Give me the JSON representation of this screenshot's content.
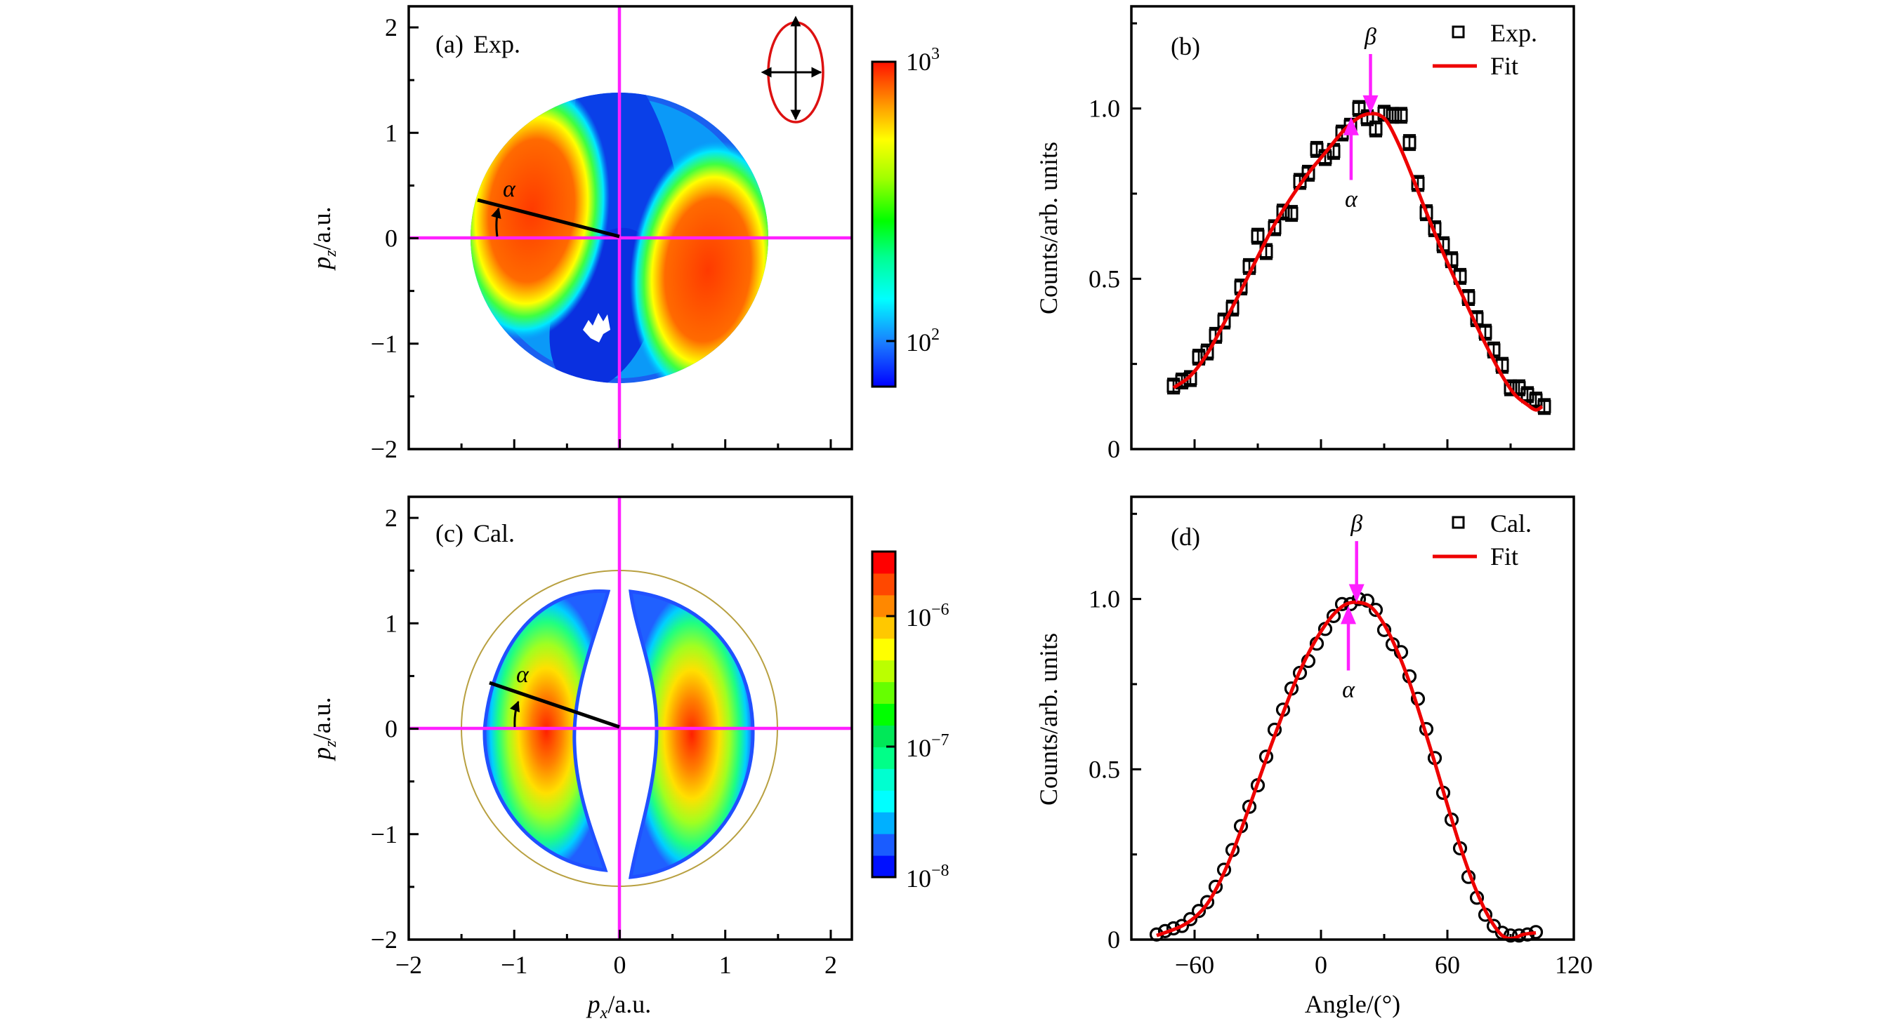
{
  "figure": {
    "panels": {
      "a": {
        "label": "(a)",
        "title": "Exp.",
        "xlabel_italic": "p",
        "xlabel_sub": "x",
        "xlabel_unit": "/a.u.",
        "ylabel_italic": "p",
        "ylabel_sub": "z",
        "ylabel_unit": "/a.u.",
        "angle_symbol": "α",
        "colorbar": {
          "scale": "log",
          "ticks": [
            {
              "base": "10",
              "exp": "3",
              "value": 1000
            },
            {
              "base": "10",
              "exp": "2",
              "value": 100
            }
          ],
          "range": [
            55,
            1000
          ]
        }
      },
      "b": {
        "label": "(b)",
        "legend": [
          "Exp.",
          "Fit"
        ],
        "alpha_symbol": "α",
        "beta_symbol": "β"
      },
      "c": {
        "label": "(c)",
        "title": "Cal.",
        "angle_symbol": "α",
        "colorbar": {
          "scale": "log",
          "ticks": [
            {
              "base": "10",
              "exp": "−6",
              "value": 1e-06
            },
            {
              "base": "10",
              "exp": "−7",
              "value": 1e-07
            },
            {
              "base": "10",
              "exp": "−8",
              "value": 1e-08
            }
          ],
          "range": [
            1e-08,
            3.2e-06
          ],
          "levels": 15
        }
      },
      "d": {
        "label": "(d)",
        "legend": [
          "Cal.",
          "Fit"
        ],
        "alpha_symbol": "α",
        "beta_symbol": "β"
      }
    },
    "colors": {
      "crosshair": "#ff20ff",
      "fit": "#ee0000",
      "ring": "#b8a040",
      "ellipse_icon": "#dd1111"
    }
  },
  "chart_data": [
    {
      "id": "a",
      "type": "heatmap",
      "title": "(a) Exp.",
      "xlabel": "p_x/a.u.",
      "ylabel": "p_z/a.u.",
      "xlim": [
        -2,
        2.2
      ],
      "ylim": [
        -2,
        2.2
      ],
      "xticks": [
        -2,
        -1,
        0,
        1,
        2
      ],
      "yticks": [
        -2,
        -1,
        0,
        1,
        2
      ],
      "xtick_labels": [
        "−2",
        "−1",
        "0",
        "1",
        "2"
      ],
      "ytick_labels": [
        "−2",
        "−1",
        "0",
        "1",
        "2"
      ],
      "minor_ticks": [
        -1.5,
        -0.5,
        0.5,
        1.5
      ],
      "crosshair": {
        "x": 0,
        "y": 0
      },
      "detector_radius": {
        "x": 1.42,
        "y": 1.38
      },
      "lobes": [
        {
          "center": [
            -0.85,
            0.3
          ],
          "peak": "high"
        },
        {
          "center": [
            0.85,
            -0.3
          ],
          "peak": "high"
        }
      ],
      "alpha_line": {
        "from": [
          0,
          0
        ],
        "to": [
          -1.35,
          0.36
        ]
      },
      "inset": "polarization ellipse (vertical major axis)",
      "colorbar_range": [
        55,
        1000
      ],
      "colorbar_scale": "log"
    },
    {
      "id": "b",
      "type": "scatter",
      "title": "(b)",
      "xlabel": "",
      "ylabel": "Counts/arb. units",
      "xlim": [
        -90,
        120
      ],
      "ylim": [
        0,
        1.3
      ],
      "xticks": [
        -60,
        0,
        60,
        120
      ],
      "minor_xticks": [
        -30,
        30,
        90
      ],
      "yticks": [
        0,
        0.5,
        1.0
      ],
      "ytick_labels": [
        "0",
        "0.5",
        "1.0"
      ],
      "minor_yticks": [
        0.25,
        0.75,
        1.25
      ],
      "legend": [
        "Exp.",
        "Fit"
      ],
      "legend_position": "top-right",
      "series": [
        {
          "name": "Exp.",
          "marker": "square",
          "x": [
            -70,
            -66,
            -62,
            -58,
            -54,
            -50,
            -46,
            -42,
            -38,
            -34,
            -30,
            -26,
            -22,
            -18,
            -14,
            -10,
            -6,
            -2,
            2,
            6,
            10,
            14,
            18,
            22,
            26,
            30,
            34,
            38,
            42,
            46,
            50,
            54,
            58,
            62,
            66,
            70,
            74,
            78,
            82,
            86,
            90,
            94,
            98,
            102,
            106
          ],
          "y": [
            0.185,
            0.2,
            0.207,
            0.27,
            0.285,
            0.334,
            0.376,
            0.414,
            0.476,
            0.536,
            0.625,
            0.58,
            0.65,
            0.696,
            0.692,
            0.786,
            0.81,
            0.88,
            0.856,
            0.874,
            0.928,
            0.948,
            1.0,
            0.973,
            0.94,
            0.986,
            0.98,
            0.98,
            0.9,
            0.78,
            0.694,
            0.647,
            0.6,
            0.556,
            0.507,
            0.445,
            0.383,
            0.343,
            0.291,
            0.246,
            0.18,
            0.18,
            0.16,
            0.144,
            0.125
          ],
          "yerr": 0.022
        },
        {
          "name": "Fit",
          "line": "solid",
          "x": [
            -70,
            -62,
            -54,
            -46,
            -38,
            -30,
            -22,
            -14,
            -6,
            2,
            10,
            16,
            20,
            24,
            28,
            32,
            38,
            44,
            50,
            56,
            62,
            68,
            74,
            80,
            86,
            92,
            98,
            102,
            105
          ],
          "y": [
            0.18,
            0.215,
            0.28,
            0.37,
            0.465,
            0.565,
            0.66,
            0.74,
            0.81,
            0.87,
            0.93,
            0.965,
            0.98,
            0.985,
            0.98,
            0.955,
            0.88,
            0.79,
            0.695,
            0.605,
            0.52,
            0.44,
            0.36,
            0.285,
            0.215,
            0.16,
            0.13,
            0.115,
            0.125
          ]
        }
      ],
      "annotations": [
        {
          "text": "β",
          "x": 23.5,
          "arrow_from": 1.16,
          "arrow_to": 0.985,
          "direction": "down"
        },
        {
          "text": "α",
          "x": 14.3,
          "arrow_from": 0.79,
          "arrow_to": 0.975,
          "direction": "up"
        }
      ]
    },
    {
      "id": "c",
      "type": "heatmap",
      "title": "(c) Cal.",
      "xlabel": "p_x/a.u.",
      "ylabel": "p_z/a.u.",
      "xlim": [
        -2,
        2.2
      ],
      "ylim": [
        -2,
        2.2
      ],
      "xticks": [
        -2,
        -1,
        0,
        1,
        2
      ],
      "yticks": [
        -2,
        -1,
        0,
        1,
        2
      ],
      "xtick_labels": [
        "−2",
        "−1",
        "0",
        "1",
        "2"
      ],
      "ytick_labels": [
        "−2",
        "−1",
        "0",
        "1",
        "2"
      ],
      "minor_ticks": [
        -1.5,
        -0.5,
        0.5,
        1.5
      ],
      "crosshair": {
        "x": 0,
        "y": 0
      },
      "ring_radius": 1.5,
      "lobes": [
        {
          "center": [
            -0.75,
            0.1
          ],
          "peak": "high"
        },
        {
          "center": [
            0.75,
            -0.2
          ],
          "peak": "high"
        }
      ],
      "alpha_line": {
        "from": [
          0,
          0
        ],
        "to": [
          -1.23,
          0.42
        ]
      },
      "colorbar_range": [
        1e-08,
        3.2e-06
      ],
      "colorbar_scale": "log"
    },
    {
      "id": "d",
      "type": "scatter",
      "title": "(d)",
      "xlabel": "Angle/(°)",
      "ylabel": "Counts/arb. units",
      "xlim": [
        -90,
        120
      ],
      "ylim": [
        0,
        1.3
      ],
      "xticks": [
        -60,
        0,
        60,
        120
      ],
      "xtick_labels": [
        "−60",
        "0",
        "60",
        "120"
      ],
      "minor_xticks": [
        -30,
        30,
        90
      ],
      "yticks": [
        0,
        0.5,
        1.0
      ],
      "ytick_labels": [
        "0",
        "0.5",
        "1.0"
      ],
      "minor_yticks": [
        0.25,
        0.75,
        1.25
      ],
      "legend": [
        "Cal.",
        "Fit"
      ],
      "legend_position": "top-right",
      "series": [
        {
          "name": "Cal.",
          "marker": "circle",
          "x": [
            -78,
            -74,
            -70,
            -66,
            -62,
            -58,
            -54,
            -50,
            -46,
            -42,
            -38,
            -34,
            -30,
            -26,
            -22,
            -18,
            -14,
            -10,
            -6,
            -2,
            2,
            6,
            10,
            14,
            18,
            22,
            26,
            30,
            34,
            38,
            42,
            46,
            50,
            54,
            58,
            62,
            66,
            70,
            74,
            78,
            82,
            86,
            90,
            94,
            98,
            102
          ],
          "y": [
            0.015,
            0.025,
            0.033,
            0.04,
            0.06,
            0.084,
            0.11,
            0.155,
            0.205,
            0.263,
            0.333,
            0.39,
            0.453,
            0.537,
            0.616,
            0.675,
            0.737,
            0.783,
            0.818,
            0.869,
            0.912,
            0.95,
            0.985,
            0.985,
            1.0,
            0.995,
            0.968,
            0.909,
            0.867,
            0.844,
            0.773,
            0.707,
            0.618,
            0.533,
            0.431,
            0.352,
            0.268,
            0.184,
            0.123,
            0.073,
            0.04,
            0.02,
            0.012,
            0.012,
            0.015,
            0.022
          ]
        },
        {
          "name": "Fit",
          "line": "solid",
          "x": [
            -78,
            -72,
            -66,
            -60,
            -54,
            -48,
            -42,
            -36,
            -30,
            -24,
            -18,
            -12,
            -6,
            0,
            6,
            12,
            18,
            24,
            30,
            36,
            42,
            48,
            54,
            60,
            66,
            72,
            78,
            84,
            88,
            92,
            96,
            102
          ],
          "y": [
            0.012,
            0.025,
            0.04,
            0.065,
            0.105,
            0.17,
            0.255,
            0.355,
            0.46,
            0.565,
            0.665,
            0.76,
            0.84,
            0.905,
            0.955,
            0.985,
            0.99,
            0.975,
            0.925,
            0.85,
            0.755,
            0.64,
            0.52,
            0.395,
            0.275,
            0.17,
            0.085,
            0.025,
            0.005,
            0.005,
            0.015,
            0.02
          ]
        }
      ],
      "annotations": [
        {
          "text": "β",
          "x": 16.9,
          "arrow_from": 1.17,
          "arrow_to": 0.99,
          "direction": "down"
        },
        {
          "text": "α",
          "x": 13,
          "arrow_from": 0.79,
          "arrow_to": 0.98,
          "direction": "up"
        }
      ]
    }
  ]
}
